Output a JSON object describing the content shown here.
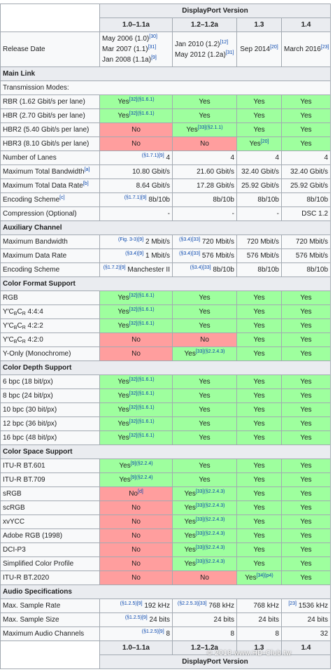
{
  "header": {
    "title": "DisplayPort Version",
    "versions": [
      "1.0–1.1a",
      "1.2–1.2a",
      "1.3",
      "1.4"
    ]
  },
  "rows": [
    {
      "label": "Release Date",
      "cells": [
        {
          "lines": [
            {
              "text": "May 2006 (1.0)",
              "post": "[30]"
            },
            {
              "text": "Mar 2007 (1.1)",
              "post": "[31]"
            },
            {
              "text": "Jan 2008 (1.1a)",
              "post": "[9]"
            }
          ]
        },
        {
          "lines": [
            {
              "text": "Jan 2010 (1.2)",
              "post": "[12]"
            },
            {
              "text": "May 2012 (1.2a)",
              "post": "[31]"
            }
          ]
        },
        {
          "text": "Sep 2014",
          "post": "[20]"
        },
        {
          "text": "March 2016",
          "post": "[23]"
        }
      ]
    },
    {
      "section": "Main Link"
    },
    {
      "label": "Transmission Modes:",
      "cells": []
    },
    {
      "label": "RBR (1.62 Gbit/s per lane)",
      "cells": [
        {
          "text": "Yes",
          "post": "[32](§1.6.1)",
          "status": "yes"
        },
        {
          "text": "Yes",
          "status": "yes"
        },
        {
          "text": "Yes",
          "status": "yes"
        },
        {
          "text": "Yes",
          "status": "yes"
        }
      ]
    },
    {
      "label": "HBR (2.70 Gbit/s per lane)",
      "cells": [
        {
          "text": "Yes",
          "post": "[32](§1.6.1)",
          "status": "yes"
        },
        {
          "text": "Yes",
          "status": "yes"
        },
        {
          "text": "Yes",
          "status": "yes"
        },
        {
          "text": "Yes",
          "status": "yes"
        }
      ]
    },
    {
      "label": "HBR2 (5.40 Gbit/s per lane)",
      "cells": [
        {
          "text": "No",
          "status": "no"
        },
        {
          "text": "Yes",
          "post": "[33](§2.1.1)",
          "status": "yes"
        },
        {
          "text": "Yes",
          "status": "yes"
        },
        {
          "text": "Yes",
          "status": "yes"
        }
      ]
    },
    {
      "label": "HBR3 (8.10 Gbit/s per lane)",
      "cells": [
        {
          "text": "No",
          "status": "no"
        },
        {
          "text": "No",
          "status": "no"
        },
        {
          "text": "Yes",
          "post": "[20]",
          "status": "yes"
        },
        {
          "text": "Yes",
          "status": "yes"
        }
      ]
    },
    {
      "label": "Number of Lanes",
      "cells": [
        {
          "pre": "(§1.7.1)[9]",
          "text": "4"
        },
        {
          "text": "4"
        },
        {
          "text": "4"
        },
        {
          "text": "4"
        }
      ]
    },
    {
      "label": "Maximum Total Bandwidth",
      "label_post": "[a]",
      "cells": [
        {
          "text": "10.80 Gbit/s"
        },
        {
          "text": "21.60 Gbit/s"
        },
        {
          "text": "32.40 Gbit/s"
        },
        {
          "text": "32.40 Gbit/s"
        }
      ]
    },
    {
      "label": "Maximum Total Data Rate",
      "label_post": "[b]",
      "cells": [
        {
          "text": "8.64 Gbit/s"
        },
        {
          "text": "17.28 Gbit/s"
        },
        {
          "text": "25.92 Gbit/s"
        },
        {
          "text": "25.92 Gbit/s"
        }
      ]
    },
    {
      "label": "Encoding Scheme",
      "label_post": "[c]",
      "cells": [
        {
          "pre": "(§1.7.1)[9]",
          "text": "8b/10b"
        },
        {
          "text": "8b/10b"
        },
        {
          "text": "8b/10b"
        },
        {
          "text": "8b/10b"
        }
      ]
    },
    {
      "label": "Compression (Optional)",
      "cells": [
        {
          "text": "-"
        },
        {
          "text": "-"
        },
        {
          "text": "-"
        },
        {
          "text": "DSC 1.2"
        }
      ]
    },
    {
      "section": "Auxiliary Channel"
    },
    {
      "label": "Maximum Bandwidth",
      "cells": [
        {
          "pre": "(Fig. 3-3)[9]",
          "text": "2 Mbit/s"
        },
        {
          "pre": "(§3.4)[33]",
          "text": "720 Mbit/s"
        },
        {
          "text": "720 Mbit/s"
        },
        {
          "text": "720 Mbit/s"
        }
      ]
    },
    {
      "label": "Maximum Data Rate",
      "cells": [
        {
          "pre": "(§3.4)[9]",
          "text": "1 Mbit/s"
        },
        {
          "pre": "(§3.4)[33]",
          "text": "576 Mbit/s"
        },
        {
          "text": "576 Mbit/s"
        },
        {
          "text": "576 Mbit/s"
        }
      ]
    },
    {
      "label": "Encoding Scheme",
      "cells": [
        {
          "pre": "(§1.7.2)[9]",
          "text": "Manchester II"
        },
        {
          "pre": "(§3.4)[33]",
          "text": "8b/10b"
        },
        {
          "text": "8b/10b"
        },
        {
          "text": "8b/10b"
        }
      ]
    },
    {
      "section": "Color Format Support"
    },
    {
      "label": "RGB",
      "cells": [
        {
          "text": "Yes",
          "post": "[32](§1.6.1)",
          "status": "yes"
        },
        {
          "text": "Yes",
          "status": "yes"
        },
        {
          "text": "Yes",
          "status": "yes"
        },
        {
          "text": "Yes",
          "status": "yes"
        }
      ]
    },
    {
      "label": [
        "Y′C",
        "B",
        "C",
        "R",
        " 4:4:4"
      ],
      "cells": [
        {
          "text": "Yes",
          "post": "[32](§1.6.1)",
          "status": "yes"
        },
        {
          "text": "Yes",
          "status": "yes"
        },
        {
          "text": "Yes",
          "status": "yes"
        },
        {
          "text": "Yes",
          "status": "yes"
        }
      ]
    },
    {
      "label": [
        "Y′C",
        "B",
        "C",
        "R",
        " 4:2:2"
      ],
      "cells": [
        {
          "text": "Yes",
          "post": "[32](§1.6.1)",
          "status": "yes"
        },
        {
          "text": "Yes",
          "status": "yes"
        },
        {
          "text": "Yes",
          "status": "yes"
        },
        {
          "text": "Yes",
          "status": "yes"
        }
      ]
    },
    {
      "label": [
        "Y′C",
        "B",
        "C",
        "R",
        " 4:2:0"
      ],
      "cells": [
        {
          "text": "No",
          "status": "no"
        },
        {
          "text": "No",
          "status": "no"
        },
        {
          "text": "Yes",
          "status": "yes"
        },
        {
          "text": "Yes",
          "status": "yes"
        }
      ]
    },
    {
      "label": "Y-Only (Monochrome)",
      "cells": [
        {
          "text": "No",
          "status": "no"
        },
        {
          "text": "Yes",
          "post": "[33](§2.2.4.3)",
          "status": "yes"
        },
        {
          "text": "Yes",
          "status": "yes"
        },
        {
          "text": "Yes",
          "status": "yes"
        }
      ]
    },
    {
      "section": "Color Depth Support"
    },
    {
      "label": "6 bpc (18 bit/px)",
      "cells": [
        {
          "text": "Yes",
          "post": "[32](§1.6.1)",
          "status": "yes"
        },
        {
          "text": "Yes",
          "status": "yes"
        },
        {
          "text": "Yes",
          "status": "yes"
        },
        {
          "text": "Yes",
          "status": "yes"
        }
      ]
    },
    {
      "label": "8 bpc (24 bit/px)",
      "cells": [
        {
          "text": "Yes",
          "post": "[32](§1.6.1)",
          "status": "yes"
        },
        {
          "text": "Yes",
          "status": "yes"
        },
        {
          "text": "Yes",
          "status": "yes"
        },
        {
          "text": "Yes",
          "status": "yes"
        }
      ]
    },
    {
      "label": "10 bpc (30 bit/px)",
      "cells": [
        {
          "text": "Yes",
          "post": "[32](§1.6.1)",
          "status": "yes"
        },
        {
          "text": "Yes",
          "status": "yes"
        },
        {
          "text": "Yes",
          "status": "yes"
        },
        {
          "text": "Yes",
          "status": "yes"
        }
      ]
    },
    {
      "label": "12 bpc (36 bit/px)",
      "cells": [
        {
          "text": "Yes",
          "post": "[32](§1.6.1)",
          "status": "yes"
        },
        {
          "text": "Yes",
          "status": "yes"
        },
        {
          "text": "Yes",
          "status": "yes"
        },
        {
          "text": "Yes",
          "status": "yes"
        }
      ]
    },
    {
      "label": "16 bpc (48 bit/px)",
      "cells": [
        {
          "text": "Yes",
          "post": "[32](§1.6.1)",
          "status": "yes"
        },
        {
          "text": "Yes",
          "status": "yes"
        },
        {
          "text": "Yes",
          "status": "yes"
        },
        {
          "text": "Yes",
          "status": "yes"
        }
      ]
    },
    {
      "section": "Color Space Support"
    },
    {
      "label": "ITU-R BT.601",
      "cells": [
        {
          "text": "Yes",
          "post": "[9](§2.2.4)",
          "status": "yes"
        },
        {
          "text": "Yes",
          "status": "yes"
        },
        {
          "text": "Yes",
          "status": "yes"
        },
        {
          "text": "Yes",
          "status": "yes"
        }
      ]
    },
    {
      "label": "ITU-R BT.709",
      "cells": [
        {
          "text": "Yes",
          "post": "[9](§2.2.4)",
          "status": "yes"
        },
        {
          "text": "Yes",
          "status": "yes"
        },
        {
          "text": "Yes",
          "status": "yes"
        },
        {
          "text": "Yes",
          "status": "yes"
        }
      ]
    },
    {
      "label": "sRGB",
      "cells": [
        {
          "text": "No",
          "post": "[d]",
          "status": "no"
        },
        {
          "text": "Yes",
          "post": "[33](§2.2.4.3)",
          "status": "yes"
        },
        {
          "text": "Yes",
          "status": "yes"
        },
        {
          "text": "Yes",
          "status": "yes"
        }
      ]
    },
    {
      "label": "scRGB",
      "cells": [
        {
          "text": "No",
          "status": "no"
        },
        {
          "text": "Yes",
          "post": "[33](§2.2.4.3)",
          "status": "yes"
        },
        {
          "text": "Yes",
          "status": "yes"
        },
        {
          "text": "Yes",
          "status": "yes"
        }
      ]
    },
    {
      "label": "xvYCC",
      "cells": [
        {
          "text": "No",
          "status": "no"
        },
        {
          "text": "Yes",
          "post": "[33](§2.2.4.3)",
          "status": "yes"
        },
        {
          "text": "Yes",
          "status": "yes"
        },
        {
          "text": "Yes",
          "status": "yes"
        }
      ]
    },
    {
      "label": "Adobe RGB (1998)",
      "cells": [
        {
          "text": "No",
          "status": "no"
        },
        {
          "text": "Yes",
          "post": "[33](§2.2.4.3)",
          "status": "yes"
        },
        {
          "text": "Yes",
          "status": "yes"
        },
        {
          "text": "Yes",
          "status": "yes"
        }
      ]
    },
    {
      "label": "DCI-P3",
      "cells": [
        {
          "text": "No",
          "status": "no"
        },
        {
          "text": "Yes",
          "post": "[33](§2.2.4.3)",
          "status": "yes"
        },
        {
          "text": "Yes",
          "status": "yes"
        },
        {
          "text": "Yes",
          "status": "yes"
        }
      ]
    },
    {
      "label": "Simplified Color Profile",
      "cells": [
        {
          "text": "No",
          "status": "no"
        },
        {
          "text": "Yes",
          "post": "[33](§2.2.4.3)",
          "status": "yes"
        },
        {
          "text": "Yes",
          "status": "yes"
        },
        {
          "text": "Yes",
          "status": "yes"
        }
      ]
    },
    {
      "label": "ITU-R BT.2020",
      "cells": [
        {
          "text": "No",
          "status": "no"
        },
        {
          "text": "No",
          "status": "no"
        },
        {
          "text": "Yes",
          "post": "[34](p4)",
          "status": "yes"
        },
        {
          "text": "Yes",
          "status": "yes"
        }
      ]
    },
    {
      "section": "Audio Specifications"
    },
    {
      "label": "Max. Sample Rate",
      "cells": [
        {
          "pre": "(§1.2.5)[9]",
          "text": "192 kHz"
        },
        {
          "pre": "(§2.2.5.3)[33]",
          "text": "768 kHz"
        },
        {
          "text": "768 kHz"
        },
        {
          "pre": "[23]",
          "text": "1536 kHz"
        }
      ]
    },
    {
      "label": "Max. Sample Size",
      "cells": [
        {
          "pre": "(§1.2.5)[9]",
          "text": "24 bits"
        },
        {
          "text": "24 bits"
        },
        {
          "text": "24 bits"
        },
        {
          "text": "24 bits"
        }
      ]
    },
    {
      "label": "Maximum Audio Channels",
      "cells": [
        {
          "pre": "(§1.2.5)[9]",
          "text": "8"
        },
        {
          "text": "8"
        },
        {
          "text": "8"
        },
        {
          "text": "32"
        }
      ]
    }
  ],
  "watermark": "© 2018 www.HD-Club.tw"
}
